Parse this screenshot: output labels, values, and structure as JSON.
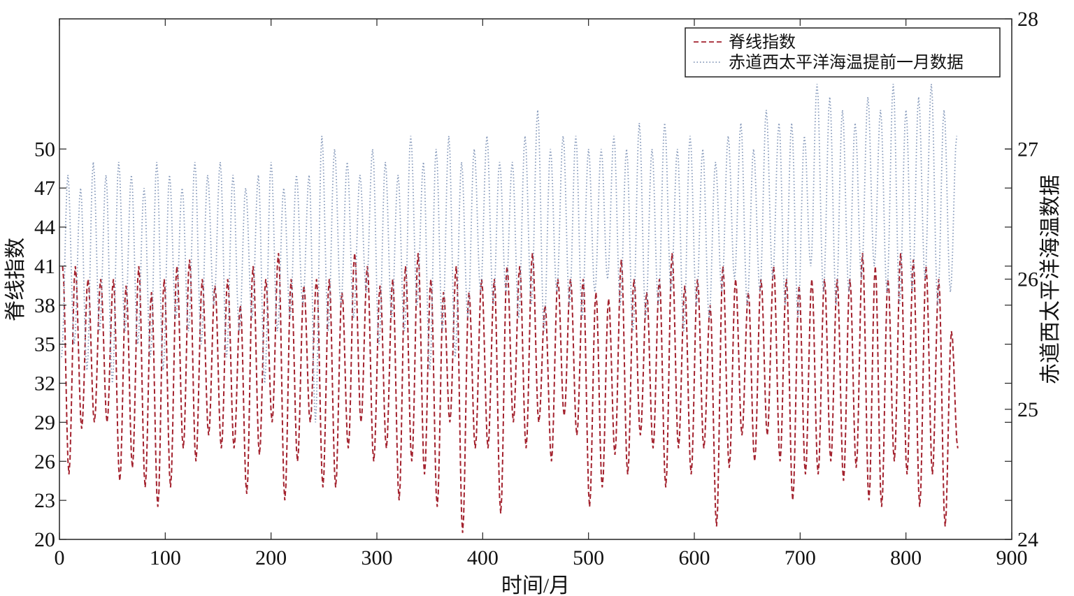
{
  "chart_data": {
    "type": "line",
    "xlabel": "时间/月",
    "ylabel_left": "脊线指数",
    "ylabel_right": "赤道西太平洋海温数据",
    "xlim": [
      0,
      900
    ],
    "xticks": [
      0,
      100,
      200,
      300,
      400,
      500,
      600,
      700,
      800,
      900
    ],
    "ylim_left": [
      20,
      60
    ],
    "yticks_left": [
      20,
      23,
      26,
      29,
      32,
      35,
      38,
      41,
      44,
      47,
      50
    ],
    "ylim_right": [
      24,
      28
    ],
    "yticks_right": [
      24,
      25,
      26,
      27,
      28
    ],
    "grid": false,
    "legend_position": "top-right",
    "series": [
      {
        "name": "脊线指数",
        "axis": "left",
        "style": "dashed",
        "color": "#a3222e",
        "annual_max_month_offset": 3,
        "annual_min_month_offset": 9,
        "annual_max": [
          41,
          41,
          40,
          40,
          40,
          39.5,
          41,
          39,
          40,
          41,
          41.5,
          40,
          39.5,
          40,
          38,
          41,
          40,
          42,
          40,
          39.5,
          40,
          40,
          39,
          42,
          41,
          39.5,
          40,
          41,
          42,
          40,
          39,
          41,
          39,
          40,
          40,
          41,
          41,
          42,
          38,
          40,
          40,
          40,
          39,
          38.5,
          41.5,
          40,
          39,
          40,
          42,
          39.5,
          40,
          38,
          41,
          40,
          39,
          40,
          41,
          40,
          39.5,
          40,
          40,
          40,
          40,
          42,
          41,
          40,
          42,
          41.5,
          41,
          40,
          36
        ],
        "annual_min": [
          25,
          28.5,
          29,
          29,
          24.5,
          25.5,
          24,
          22.5,
          24,
          27,
          26,
          28,
          27,
          27,
          23.5,
          26.5,
          29,
          23,
          26,
          29,
          24,
          24,
          27,
          29,
          26,
          27,
          23,
          26,
          25,
          22.5,
          29,
          20.5,
          27,
          27,
          22,
          29,
          27,
          29,
          26,
          29.5,
          28,
          22.5,
          24,
          26.5,
          25,
          28,
          27,
          24,
          27,
          25,
          27,
          21,
          25.5,
          28,
          26,
          28,
          26,
          23,
          25,
          25,
          26,
          24.5,
          25.5,
          23,
          22.5,
          26,
          25,
          22.5,
          25,
          21,
          27
        ]
      },
      {
        "name": "赤道西太平洋海温提前一月数据",
        "axis": "right",
        "style": "dotted",
        "color": "#8296b8",
        "annual_max_month_offset": 8,
        "annual_min_month_offset": 2,
        "annual_max": [
          26.8,
          26.7,
          26.9,
          26.8,
          26.9,
          26.8,
          26.7,
          26.9,
          26.8,
          26.7,
          26.9,
          26.8,
          26.9,
          26.8,
          26.7,
          26.8,
          26.9,
          26.7,
          26.8,
          26.8,
          27.1,
          27.0,
          26.9,
          26.8,
          27.0,
          26.9,
          26.8,
          27.1,
          26.9,
          27.0,
          27.1,
          26.9,
          27.0,
          27.1,
          26.9,
          26.9,
          27.1,
          27.3,
          27.0,
          27.1,
          27.1,
          27.0,
          27.0,
          27.1,
          27.0,
          27.2,
          27.0,
          27.2,
          27.0,
          27.1,
          27.0,
          26.9,
          27.1,
          27.2,
          27.0,
          27.3,
          27.2,
          27.2,
          27.1,
          27.5,
          27.4,
          27.3,
          27.2,
          27.4,
          27.3,
          27.5,
          27.3,
          27.4,
          27.5,
          27.3,
          27.1
        ],
        "annual_min": [
          25.4,
          25.5,
          25.3,
          25.6,
          25.2,
          25.6,
          25.5,
          25.4,
          25.3,
          25.7,
          25.6,
          25.5,
          25.8,
          25.4,
          25.6,
          25.7,
          25.2,
          25.6,
          25.7,
          25.8,
          24.9,
          25.6,
          25.8,
          25.7,
          25.9,
          25.5,
          25.7,
          25.6,
          25.8,
          25.3,
          25.6,
          25.4,
          25.7,
          25.9,
          25.8,
          25.9,
          25.7,
          25.8,
          25.6,
          25.9,
          25.8,
          25.7,
          25.9,
          26.0,
          25.8,
          25.6,
          25.7,
          25.8,
          25.9,
          25.6,
          25.8,
          25.7,
          25.9,
          26.0,
          25.8,
          25.9,
          26.0,
          25.8,
          25.7,
          26.1,
          25.9,
          25.8,
          25.9,
          26.0,
          26.1,
          25.9,
          25.8,
          25.9,
          26.0,
          25.8,
          25.9
        ]
      }
    ]
  }
}
